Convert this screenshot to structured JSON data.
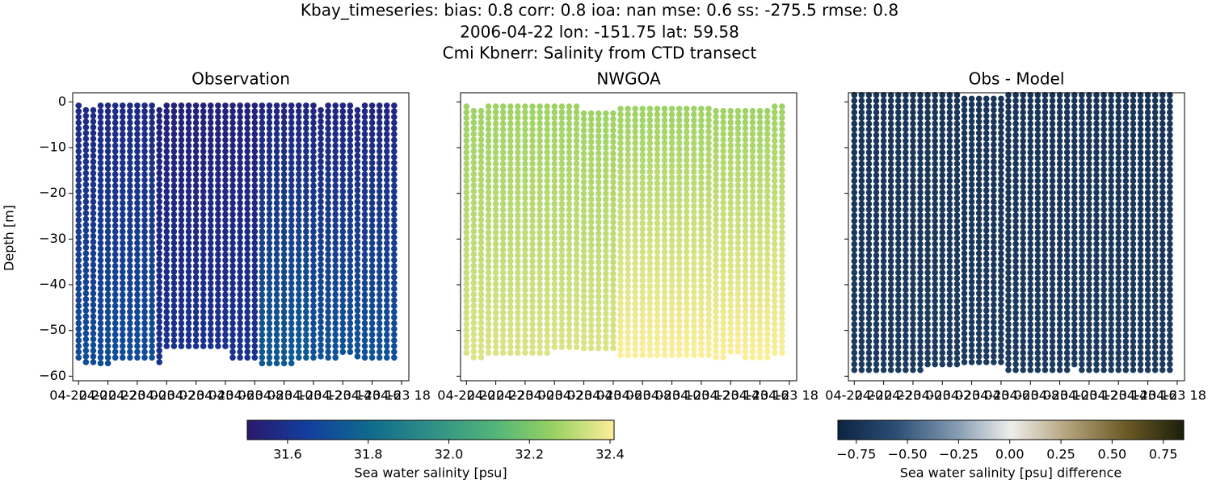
{
  "title": [
    "Kbay_timeseries: bias: 0.8  corr: 0.8  ioa: nan  mse: 0.6  ss: -275.5  rmse: 0.8",
    "2006-04-22 lon: -151.75 lat: 59.58",
    "Cmi Kbnerr: Salinity from CTD transect"
  ],
  "chart_data": [
    {
      "type": "scatter",
      "title": "Observation",
      "ylabel": "Depth [m]",
      "colorbar": 0,
      "x": [
        20,
        20.5,
        21,
        21.5,
        22,
        22.5,
        23,
        23.5,
        24,
        24.5,
        25,
        25.5,
        26,
        26.5,
        27,
        27.5,
        28,
        28.5,
        29,
        29.5,
        30,
        30.5,
        31,
        31.5,
        32,
        32.5,
        33,
        33.5,
        34,
        34.5,
        35,
        35.5,
        36,
        36.5,
        37,
        37.5,
        38,
        38.5,
        39,
        39.5,
        40,
        40.5,
        41,
        41.5
      ],
      "top_depth": [
        -0.8,
        -1.8,
        -1.8,
        -0.8,
        -0.8,
        -0.8,
        -0.8,
        -0.8,
        -0.8,
        -0.8,
        -0.8,
        -1.8,
        -0.8,
        -0.8,
        -0.8,
        -0.8,
        -0.8,
        -0.8,
        -0.8,
        -0.8,
        -0.8,
        -0.8,
        -0.8,
        -0.8,
        -0.8,
        -0.8,
        -0.8,
        -0.8,
        -0.8,
        -0.8,
        -0.8,
        -0.8,
        -0.8,
        -1.8,
        -0.8,
        -0.8,
        -0.8,
        -0.8,
        -1.8,
        -0.8,
        -0.8,
        -0.8,
        -0.8,
        -0.8
      ],
      "bottom_depth": [
        -57,
        -57,
        -58,
        -58,
        -58,
        -57,
        -57,
        -57,
        -57,
        -57,
        -57,
        -57,
        -54.5,
        -54.5,
        -54.5,
        -54.5,
        -54.5,
        -54.5,
        -54.5,
        -54.5,
        -54.5,
        -56,
        -56,
        -56,
        -56,
        -58,
        -58,
        -58,
        -58,
        -58,
        -56,
        -56,
        -56,
        -56,
        -56,
        -56,
        -55,
        -55,
        -56,
        -56,
        -56,
        -56,
        -56,
        -56
      ],
      "top_value": [
        31.57,
        31.57,
        31.57,
        31.57,
        31.57,
        31.57,
        31.57,
        31.57,
        31.57,
        31.57,
        31.57,
        31.54,
        31.54,
        31.54,
        31.54,
        31.54,
        31.54,
        31.54,
        31.54,
        31.54,
        31.54,
        31.54,
        31.54,
        31.54,
        31.54,
        31.56,
        31.56,
        31.56,
        31.56,
        31.56,
        31.56,
        31.56,
        31.56,
        31.56,
        31.56,
        31.56,
        31.56,
        31.56,
        31.56,
        31.56,
        31.56,
        31.56,
        31.56,
        31.56
      ],
      "bottom_value": [
        31.7,
        31.7,
        31.7,
        31.7,
        31.7,
        31.7,
        31.7,
        31.7,
        31.7,
        31.7,
        31.7,
        31.6,
        31.6,
        31.6,
        31.6,
        31.6,
        31.6,
        31.6,
        31.6,
        31.6,
        31.6,
        31.6,
        31.6,
        31.6,
        31.6,
        31.75,
        31.75,
        31.75,
        31.75,
        31.75,
        31.75,
        31.75,
        31.72,
        31.72,
        31.72,
        31.72,
        31.72,
        31.72,
        31.72,
        31.72,
        31.72,
        31.72,
        31.72,
        31.72
      ],
      "xlim": [
        19.6,
        42.5
      ],
      "xticks": [
        {
          "value": 20,
          "label": "04-22 20"
        },
        {
          "value": 22,
          "label": "04-22 22"
        },
        {
          "value": 24,
          "label": "04-23 00"
        },
        {
          "value": 26,
          "label": "04-23 02"
        },
        {
          "value": 28,
          "label": "04-23 04"
        },
        {
          "value": 30,
          "label": "04-23 06"
        },
        {
          "value": 32,
          "label": "04-23 08"
        },
        {
          "value": 34,
          "label": "04-23 10"
        },
        {
          "value": 36,
          "label": "04-23 12"
        },
        {
          "value": 38,
          "label": "04-23 14"
        },
        {
          "value": 40,
          "label": "04-23 16"
        },
        {
          "value": 42,
          "label": "04-23 18"
        }
      ],
      "ylim": [
        -61,
        2
      ],
      "yticks": [
        0,
        {
          "value": -10,
          "label": "−10"
        },
        {
          "value": -20,
          "label": "−20"
        },
        {
          "value": -30,
          "label": "−30"
        },
        {
          "value": -40,
          "label": "−40"
        },
        {
          "value": -50,
          "label": "−50"
        },
        {
          "value": -60,
          "label": "−60"
        }
      ]
    },
    {
      "type": "scatter",
      "title": "NWGOA",
      "colorbar": 0,
      "x": [
        20,
        20.5,
        21,
        21.5,
        22,
        22.5,
        23,
        23.5,
        24,
        24.5,
        25,
        25.5,
        26,
        26.5,
        27,
        27.5,
        28,
        28.5,
        29,
        29.5,
        30,
        30.5,
        31,
        31.5,
        32,
        32.5,
        33,
        33.5,
        34,
        34.5,
        35,
        35.5,
        36,
        36.5,
        37,
        37.5,
        38,
        38.5,
        39,
        39.5,
        40,
        40.5,
        41,
        41.5
      ],
      "top_depth": [
        -1,
        -2,
        -2,
        -1,
        -1,
        -1,
        -1,
        -1,
        -1,
        -1,
        -1,
        -1,
        -1,
        -1,
        -1,
        -1,
        -2.5,
        -2.5,
        -2.5,
        -2.5,
        -2.5,
        -1.5,
        -1.5,
        -1.5,
        -1.5,
        -1.5,
        -1.5,
        -1.5,
        -1.5,
        -1.5,
        -1.5,
        -1.5,
        -1.5,
        -1.5,
        -2,
        -2,
        -2,
        -2,
        -2,
        -2,
        -2,
        -2,
        -1,
        -1
      ],
      "bottom_depth": [
        -56,
        -56,
        -56,
        -56,
        -56,
        -56,
        -56,
        -56,
        -56,
        -56,
        -56,
        -56,
        -54.5,
        -54.5,
        -54.5,
        -54.5,
        -54.5,
        -54.5,
        -54.5,
        -54.5,
        -54.5,
        -56,
        -56,
        -56,
        -56,
        -56,
        -56,
        -56,
        -56,
        -56,
        -56,
        -56,
        -56,
        -56,
        -56,
        -56,
        -55,
        -55,
        -56,
        -56,
        -56,
        -56,
        -56,
        -56
      ],
      "top_value": [
        32.27,
        32.27,
        32.27,
        32.27,
        32.27,
        32.27,
        32.27,
        32.27,
        32.27,
        32.27,
        32.27,
        32.27,
        32.27,
        32.27,
        32.27,
        32.27,
        32.27,
        32.27,
        32.27,
        32.27,
        32.27,
        32.27,
        32.27,
        32.27,
        32.27,
        32.27,
        32.27,
        32.27,
        32.27,
        32.27,
        32.27,
        32.27,
        32.27,
        32.27,
        32.27,
        32.27,
        32.27,
        32.27,
        32.27,
        32.27,
        32.27,
        32.27,
        32.27,
        32.27
      ],
      "bottom_value": [
        32.36,
        32.36,
        32.36,
        32.36,
        32.36,
        32.36,
        32.36,
        32.36,
        32.36,
        32.36,
        32.36,
        32.36,
        32.36,
        32.36,
        32.36,
        32.36,
        32.36,
        32.36,
        32.36,
        32.36,
        32.36,
        32.41,
        32.41,
        32.41,
        32.41,
        32.41,
        32.41,
        32.41,
        32.41,
        32.41,
        32.41,
        32.41,
        32.41,
        32.41,
        32.41,
        32.41,
        32.41,
        32.41,
        32.41,
        32.41,
        32.41,
        32.41,
        32.41,
        32.41
      ],
      "xlim": [
        19.6,
        42.5
      ],
      "xticks": [
        {
          "value": 20,
          "label": "04-22 20"
        },
        {
          "value": 22,
          "label": "04-22 22"
        },
        {
          "value": 24,
          "label": "04-23 00"
        },
        {
          "value": 26,
          "label": "04-23 02"
        },
        {
          "value": 28,
          "label": "04-23 04"
        },
        {
          "value": 30,
          "label": "04-23 06"
        },
        {
          "value": 32,
          "label": "04-23 08"
        },
        {
          "value": 34,
          "label": "04-23 10"
        },
        {
          "value": 36,
          "label": "04-23 12"
        },
        {
          "value": 38,
          "label": "04-23 14"
        },
        {
          "value": 40,
          "label": "04-23 16"
        },
        {
          "value": 42,
          "label": "04-23 18"
        }
      ],
      "ylim": [
        -61,
        2
      ],
      "yticks": [
        0,
        -10,
        -20,
        -30,
        -40,
        -50,
        -60
      ]
    },
    {
      "type": "scatter",
      "title": "Obs - Model",
      "colorbar": 1,
      "x": [
        20,
        20.5,
        21,
        21.5,
        22,
        22.5,
        23,
        23.5,
        24,
        24.5,
        25,
        25.5,
        26,
        26.5,
        27,
        27.5,
        28,
        28.5,
        29,
        29.5,
        30,
        30.5,
        31,
        31.5,
        32,
        32.5,
        33,
        33.5,
        34,
        34.5,
        35,
        35.5,
        36,
        36.5,
        37,
        37.5,
        38,
        38.5,
        39,
        39.5,
        40,
        40.5,
        41,
        41.5
      ],
      "top_depth": [
        1.5,
        1.5,
        1.5,
        1.5,
        1.5,
        1.5,
        1.5,
        1.5,
        1.5,
        1.5,
        1.5,
        1.5,
        1.5,
        1.5,
        1.5,
        0.7,
        0.7,
        0.7,
        0.7,
        0.7,
        0.7,
        1.5,
        1.5,
        1.5,
        1.5,
        1.5,
        1.5,
        1.5,
        1.5,
        1.5,
        1.5,
        1.5,
        1.5,
        1.5,
        1.5,
        1.5,
        1.5,
        1.5,
        1.5,
        1.5,
        1.5,
        1.5,
        1.5,
        1.5
      ],
      "bottom_depth": [
        -59,
        -59,
        -59,
        -59,
        -59,
        -59,
        -59,
        -59,
        -59,
        -59,
        -57.5,
        -57.5,
        -57.5,
        -57.5,
        -57.5,
        -57.5,
        -57.5,
        -57.5,
        -57.5,
        -57.5,
        -57.5,
        -59,
        -59,
        -59,
        -59,
        -59,
        -59,
        -59,
        -59,
        -59,
        -58.5,
        -59,
        -59,
        -59,
        -59,
        -59,
        -59,
        -59,
        -59,
        -59,
        -59,
        -59,
        -59,
        -59
      ],
      "top_value": [
        -0.72,
        -0.72,
        -0.72,
        -0.72,
        -0.72,
        -0.72,
        -0.72,
        -0.72,
        -0.72,
        -0.72,
        -0.72,
        -0.72,
        -0.72,
        -0.72,
        -0.72,
        -0.72,
        -0.72,
        -0.72,
        -0.72,
        -0.72,
        -0.72,
        -0.72,
        -0.72,
        -0.72,
        -0.72,
        -0.72,
        -0.72,
        -0.72,
        -0.72,
        -0.72,
        -0.72,
        -0.72,
        -0.72,
        -0.72,
        -0.72,
        -0.72,
        -0.72,
        -0.72,
        -0.72,
        -0.72,
        -0.72,
        -0.72,
        -0.72,
        -0.72
      ],
      "bottom_value": [
        -0.68,
        -0.68,
        -0.68,
        -0.68,
        -0.68,
        -0.68,
        -0.68,
        -0.68,
        -0.68,
        -0.68,
        -0.68,
        -0.68,
        -0.68,
        -0.68,
        -0.68,
        -0.68,
        -0.68,
        -0.68,
        -0.68,
        -0.68,
        -0.68,
        -0.68,
        -0.68,
        -0.68,
        -0.68,
        -0.68,
        -0.68,
        -0.68,
        -0.68,
        -0.68,
        -0.68,
        -0.68,
        -0.68,
        -0.68,
        -0.68,
        -0.68,
        -0.68,
        -0.68,
        -0.68,
        -0.68,
        -0.68,
        -0.68,
        -0.68,
        -0.68
      ],
      "xlim": [
        19.6,
        42.5
      ],
      "xticks": [
        {
          "value": 20,
          "label": "04-22 20"
        },
        {
          "value": 22,
          "label": "04-22 22"
        },
        {
          "value": 24,
          "label": "04-23 00"
        },
        {
          "value": 26,
          "label": "04-23 02"
        },
        {
          "value": 28,
          "label": "04-23 04"
        },
        {
          "value": 30,
          "label": "04-23 06"
        },
        {
          "value": 32,
          "label": "04-23 08"
        },
        {
          "value": 34,
          "label": "04-23 10"
        },
        {
          "value": 36,
          "label": "04-23 12"
        },
        {
          "value": 38,
          "label": "04-23 14"
        },
        {
          "value": 40,
          "label": "04-23 16"
        },
        {
          "value": 42,
          "label": "04-23 18"
        }
      ],
      "ylim": [
        -61,
        2
      ],
      "yticks": [
        0,
        -10,
        -20,
        -30,
        -40,
        -50,
        -60
      ]
    }
  ],
  "colorbars": [
    {
      "label": "Sea water salinity [psu]",
      "clim": [
        31.5,
        32.41
      ],
      "colormap": [
        "#2a186c",
        "#123f9e",
        "#0f6a8c",
        "#2f8f87",
        "#4fb37a",
        "#97d162",
        "#fdee99"
      ],
      "ticks": [
        31.6,
        31.8,
        {
          "value": 32,
          "label": "32.0"
        },
        32.2,
        32.4
      ]
    },
    {
      "label": "Sea water salinity [psu] difference",
      "clim": [
        -0.84,
        0.85
      ],
      "colormap": [
        "#0b2442",
        "#2b4d74",
        "#7f96ae",
        "#eeeeec",
        "#b3a17a",
        "#6b5a25",
        "#1c1e0b"
      ],
      "ticks": [
        {
          "value": -0.75,
          "label": "−0.75"
        },
        {
          "value": -0.5,
          "label": "−0.50"
        },
        {
          "value": -0.25,
          "label": "−0.25"
        },
        {
          "value": 0,
          "label": "0.00"
        },
        0.25,
        {
          "value": 0.5,
          "label": "0.50"
        },
        0.75
      ]
    }
  ]
}
